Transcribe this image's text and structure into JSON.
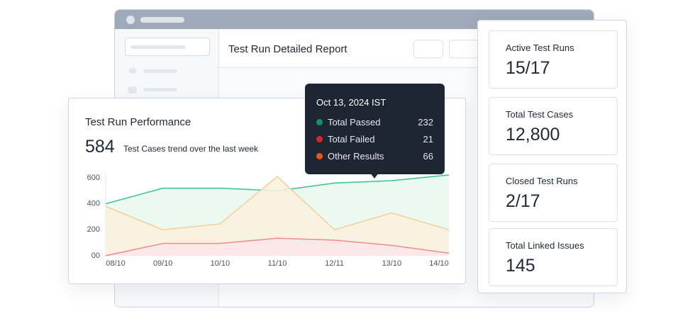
{
  "report": {
    "title": "Test Run Detailed Report"
  },
  "performance": {
    "title": "Test Run Performance",
    "total": "584",
    "subtitle": "Test Cases trend over the last week"
  },
  "tooltip": {
    "date": "Oct 13, 2024 IST",
    "rows": [
      {
        "name": "Total Passed",
        "value": "232",
        "color": "#12925f"
      },
      {
        "name": "Total Failed",
        "value": "21",
        "color": "#dc2626"
      },
      {
        "name": "Other Results",
        "value": "66",
        "color": "#ea580c"
      }
    ]
  },
  "stats": [
    {
      "label": "Active Test Runs",
      "value": "15/17"
    },
    {
      "label": "Total Test Cases",
      "value": "12,800"
    },
    {
      "label": "Closed Test Runs",
      "value": "2/17"
    },
    {
      "label": "Total Linked Issues",
      "value": "145"
    }
  ],
  "chart_data": {
    "type": "area",
    "categories": [
      "08/10",
      "09/10",
      "10/10",
      "11/10",
      "12/11",
      "13/10",
      "14/10"
    ],
    "series": [
      {
        "color": "#34c38f",
        "fill": "#e7f8ef",
        "values": [
          400,
          520,
          520,
          500,
          560,
          578,
          622
        ]
      },
      {
        "color": "#f3cf98",
        "fill": "#fdf1de",
        "values": [
          380,
          200,
          245,
          610,
          200,
          330,
          200
        ]
      },
      {
        "color": "#f08a93",
        "fill": "#fde6e9",
        "values": [
          0,
          95,
          95,
          135,
          120,
          80,
          20
        ]
      }
    ],
    "ylim": [
      0,
      630
    ],
    "yticks": [
      {
        "value": 0,
        "label": "00"
      },
      200,
      400,
      600
    ]
  }
}
